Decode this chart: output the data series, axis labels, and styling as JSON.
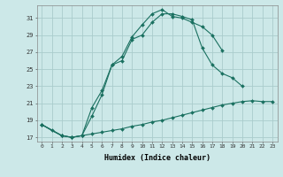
{
  "xlabel": "Humidex (Indice chaleur)",
  "xlim": [
    -0.5,
    23.5
  ],
  "ylim": [
    16.5,
    32.5
  ],
  "yticks": [
    17,
    19,
    21,
    23,
    25,
    27,
    29,
    31
  ],
  "xticks": [
    0,
    1,
    2,
    3,
    4,
    5,
    6,
    7,
    8,
    9,
    10,
    11,
    12,
    13,
    14,
    15,
    16,
    17,
    18,
    19,
    20,
    21,
    22,
    23
  ],
  "bg_color": "#cce8e8",
  "grid_color": "#aacccc",
  "line_color": "#1a7060",
  "curve1_x": [
    0,
    1,
    2,
    3,
    4,
    5,
    6,
    7,
    8,
    9,
    10,
    11,
    12,
    13,
    14,
    15,
    16,
    17,
    18
  ],
  "curve1_y": [
    18.5,
    17.8,
    17.2,
    17.0,
    17.2,
    20.5,
    22.5,
    25.5,
    26.5,
    28.8,
    30.2,
    31.5,
    32.0,
    31.2,
    31.0,
    30.5,
    30.0,
    29.0,
    27.2
  ],
  "curve2_x": [
    0,
    2,
    3,
    4,
    5,
    6,
    7,
    8,
    9,
    10,
    11,
    12,
    13,
    14,
    15,
    16,
    17,
    18,
    19,
    20
  ],
  "curve2_y": [
    18.5,
    17.2,
    17.0,
    17.2,
    19.5,
    22.0,
    25.5,
    26.0,
    28.5,
    29.0,
    30.5,
    31.5,
    31.5,
    31.2,
    30.8,
    27.5,
    25.5,
    24.5,
    24.0,
    23.0
  ],
  "curve3_x": [
    0,
    2,
    3,
    4,
    5,
    6,
    7,
    8,
    9,
    10,
    11,
    12,
    13,
    14,
    15,
    16,
    17,
    18,
    19,
    20,
    21,
    22,
    23
  ],
  "curve3_y": [
    18.5,
    17.2,
    17.0,
    17.2,
    17.4,
    17.6,
    17.8,
    18.0,
    18.3,
    18.5,
    18.8,
    19.0,
    19.3,
    19.6,
    19.9,
    20.2,
    20.5,
    20.8,
    21.0,
    21.2,
    21.3,
    21.2,
    21.2
  ]
}
